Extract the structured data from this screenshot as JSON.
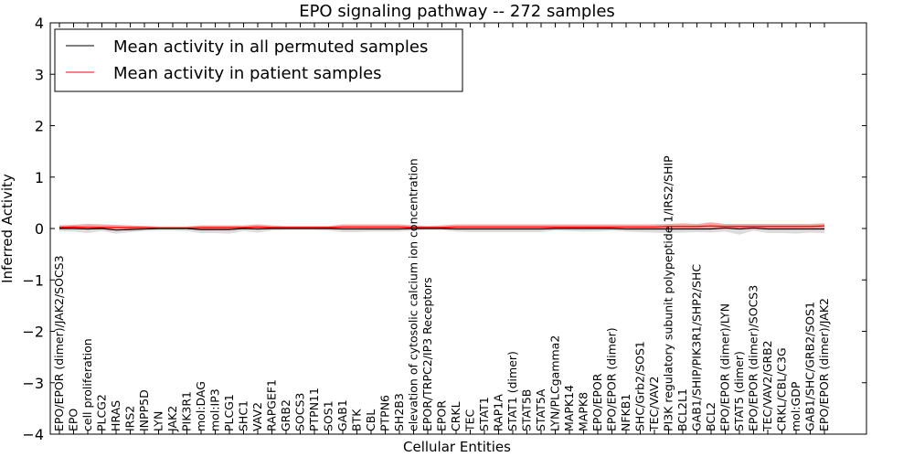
{
  "chart_data": {
    "type": "line",
    "title": "EPO signaling pathway -- 272 samples",
    "xlabel": "Cellular Entities",
    "ylabel": "Inferred Activity",
    "ylim": [
      -4,
      4
    ],
    "yticks": [
      -4,
      -3,
      -2,
      -1,
      0,
      1,
      2,
      3,
      4
    ],
    "ytick_labels": [
      "−4",
      "−3",
      "−2",
      "−1",
      "0",
      "1",
      "2",
      "3",
      "4"
    ],
    "legend_position": "top-left",
    "categories": [
      "EPO/EPOR (dimer)/JAK2/SOCS3",
      "EPO",
      "cell proliferation",
      "PLCG2",
      "HRAS",
      "IRS2",
      "INPP5D",
      "LYN",
      "JAK2",
      "PIK3R1",
      "mol:DAG",
      "mol:IP3",
      "PLCG1",
      "SHC1",
      "VAV2",
      "RAPGEF1",
      "GRB2",
      "SOCS3",
      "PTPN11",
      "SOS1",
      "GAB1",
      "BTK",
      "CBL",
      "PTPN6",
      "SH2B3",
      "elevation of cytosolic calcium ion concentration",
      "EPOR/TRPC2/IP3 Receptors",
      "EPOR",
      "CRKL",
      "TEC",
      "STAT1",
      "RAP1A",
      "STAT1 (dimer)",
      "STAT5B",
      "STAT5A",
      "LYN/PLCgamma2",
      "MAPK14",
      "MAPK8",
      "EPO/EPOR",
      "EPO/EPOR (dimer)",
      "NFKB1",
      "SHC/Grb2/SOS1",
      "TEC/VAV2",
      "PI3K regulatory subunit polypeptide 1/IRS2/SHIP",
      "BCL2L1",
      "GAB1/SHIP/PIK3R1/SHP2/SHC",
      "BCL2",
      "EPO/EPOR (dimer)/LYN",
      "STAT5 (dimer)",
      "EPO/EPOR (dimer)/SOCS3",
      "TEC/VAV2/GRB2",
      "CRKL/CBL/C3G",
      "mol:GDP",
      "GAB1/SHC/GRB2/SOS1",
      "EPO/EPOR (dimer)/JAK2"
    ],
    "series": [
      {
        "name": "Mean activity in all permuted samples",
        "color": "#000000",
        "values": [
          0.0,
          0.0,
          -0.01,
          0.0,
          -0.03,
          -0.02,
          -0.01,
          0.0,
          0.0,
          0.0,
          -0.02,
          -0.02,
          -0.02,
          0.0,
          -0.01,
          0.0,
          0.0,
          0.0,
          0.0,
          0.0,
          -0.01,
          -0.01,
          -0.01,
          -0.01,
          -0.01,
          0.0,
          0.0,
          0.0,
          -0.01,
          -0.01,
          -0.01,
          -0.01,
          -0.01,
          -0.01,
          -0.01,
          0.0,
          0.0,
          0.0,
          0.0,
          0.0,
          -0.01,
          -0.01,
          -0.01,
          -0.01,
          -0.01,
          -0.01,
          -0.01,
          0.01,
          -0.01,
          0.01,
          -0.01,
          -0.01,
          -0.01,
          -0.01,
          -0.01
        ],
        "band_upper": [
          0.05,
          0.05,
          0.04,
          0.04,
          0.03,
          0.03,
          0.02,
          0.02,
          0.02,
          0.02,
          0.02,
          0.02,
          0.02,
          0.02,
          0.02,
          0.02,
          0.02,
          0.02,
          0.02,
          0.02,
          0.02,
          0.02,
          0.02,
          0.02,
          0.02,
          0.02,
          0.02,
          0.02,
          0.02,
          0.02,
          0.02,
          0.02,
          0.02,
          0.02,
          0.02,
          0.02,
          0.02,
          0.02,
          0.02,
          0.02,
          0.02,
          0.02,
          0.02,
          0.02,
          0.02,
          0.02,
          0.02,
          0.03,
          0.02,
          0.03,
          0.02,
          0.02,
          0.02,
          0.02,
          0.02
        ],
        "band_lower": [
          -0.05,
          -0.06,
          -0.09,
          -0.05,
          -0.1,
          -0.07,
          -0.05,
          -0.04,
          -0.04,
          -0.05,
          -0.09,
          -0.09,
          -0.1,
          -0.05,
          -0.08,
          -0.04,
          -0.03,
          -0.03,
          -0.03,
          -0.04,
          -0.07,
          -0.07,
          -0.06,
          -0.06,
          -0.06,
          -0.04,
          -0.03,
          -0.03,
          -0.06,
          -0.07,
          -0.07,
          -0.07,
          -0.07,
          -0.07,
          -0.07,
          -0.04,
          -0.05,
          -0.06,
          -0.06,
          -0.04,
          -0.06,
          -0.07,
          -0.08,
          -0.09,
          -0.08,
          -0.07,
          -0.08,
          -0.06,
          -0.12,
          -0.04,
          -0.09,
          -0.09,
          -0.1,
          -0.08,
          -0.09
        ]
      },
      {
        "name": "Mean activity in patient samples",
        "color": "#ff0000",
        "values": [
          0.02,
          0.03,
          0.02,
          0.02,
          0.02,
          0.02,
          0.02,
          0.01,
          0.01,
          0.01,
          0.02,
          0.02,
          0.02,
          0.02,
          0.03,
          0.02,
          0.02,
          0.02,
          0.02,
          0.02,
          0.03,
          0.03,
          0.03,
          0.03,
          0.03,
          0.02,
          0.02,
          0.02,
          0.03,
          0.03,
          0.03,
          0.03,
          0.03,
          0.03,
          0.03,
          0.03,
          0.03,
          0.03,
          0.03,
          0.03,
          0.03,
          0.03,
          0.03,
          0.04,
          0.04,
          0.04,
          0.05,
          0.04,
          0.04,
          0.04,
          0.04,
          0.04,
          0.04,
          0.04,
          0.05
        ],
        "band_upper": [
          0.06,
          0.07,
          0.09,
          0.08,
          0.07,
          0.06,
          0.05,
          0.04,
          0.04,
          0.04,
          0.06,
          0.06,
          0.06,
          0.06,
          0.08,
          0.06,
          0.05,
          0.05,
          0.05,
          0.05,
          0.08,
          0.08,
          0.08,
          0.08,
          0.08,
          0.06,
          0.05,
          0.06,
          0.08,
          0.08,
          0.08,
          0.08,
          0.08,
          0.08,
          0.08,
          0.08,
          0.08,
          0.08,
          0.08,
          0.08,
          0.08,
          0.08,
          0.08,
          0.09,
          0.1,
          0.09,
          0.12,
          0.09,
          0.09,
          0.09,
          0.09,
          0.09,
          0.09,
          0.09,
          0.1
        ],
        "band_lower": [
          -0.01,
          -0.01,
          -0.02,
          -0.01,
          -0.01,
          -0.01,
          -0.01,
          -0.01,
          -0.01,
          -0.01,
          -0.01,
          -0.01,
          -0.01,
          -0.01,
          -0.01,
          -0.01,
          -0.01,
          -0.01,
          -0.01,
          -0.01,
          -0.01,
          -0.01,
          -0.01,
          -0.01,
          -0.01,
          -0.01,
          -0.01,
          -0.01,
          -0.01,
          -0.01,
          -0.01,
          -0.01,
          -0.01,
          -0.01,
          -0.01,
          -0.01,
          -0.01,
          -0.01,
          -0.01,
          -0.01,
          -0.01,
          -0.01,
          -0.01,
          -0.01,
          -0.01,
          -0.01,
          -0.01,
          -0.01,
          -0.01,
          -0.01,
          -0.01,
          -0.01,
          -0.01,
          -0.01,
          -0.01
        ]
      }
    ]
  }
}
